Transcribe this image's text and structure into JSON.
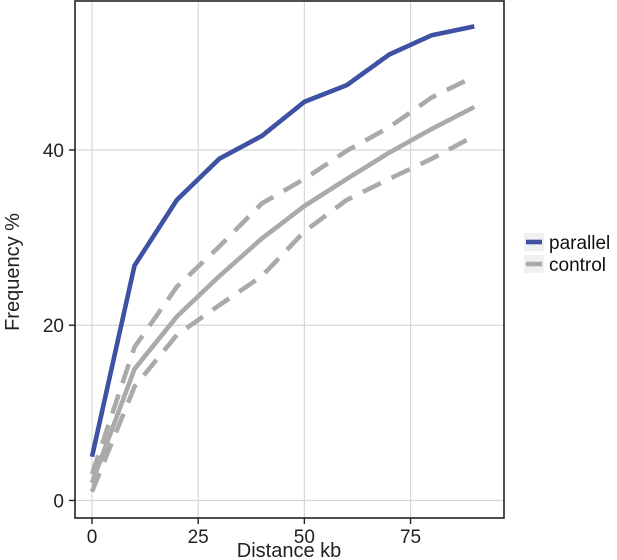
{
  "chart_data": {
    "type": "line",
    "title": "",
    "xlabel": "Distance kb",
    "ylabel": "Frequency %",
    "xlim": [
      -4,
      97
    ],
    "ylim": [
      -2,
      57
    ],
    "x_ticks": [
      0,
      25,
      50,
      75
    ],
    "x_tick_labels": [
      "0",
      "25",
      "50",
      "75"
    ],
    "y_ticks": [
      0,
      20,
      40
    ],
    "y_tick_labels": [
      "0",
      "20",
      "40"
    ],
    "grid": true,
    "legend_position": "right",
    "x": [
      0,
      10,
      20,
      30,
      40,
      50,
      60,
      70,
      80,
      90
    ],
    "series": [
      {
        "name": "parallel",
        "color": "#3f51a3",
        "style": "solid",
        "values": [
          5.0,
          26.8,
          34.3,
          39.0,
          41.6,
          45.5,
          47.4,
          50.9,
          53.1,
          54.1
        ]
      },
      {
        "name": "control",
        "color": "#aaaaaa",
        "style": "solid",
        "values": [
          2.0,
          15.0,
          21.0,
          25.6,
          29.9,
          33.6,
          36.7,
          39.7,
          42.4,
          44.9
        ]
      },
      {
        "name": "",
        "color": "#aaaaaa",
        "style": "dashed",
        "values": [
          3.0,
          17.5,
          24.4,
          29.0,
          33.9,
          36.7,
          39.9,
          42.6,
          46.0,
          48.4
        ]
      },
      {
        "name": "",
        "color": "#aaaaaa",
        "style": "dashed",
        "values": [
          1.0,
          13.0,
          18.9,
          22.3,
          25.6,
          30.7,
          34.3,
          36.7,
          39.0,
          41.6
        ]
      }
    ],
    "legend": [
      {
        "label": "parallel",
        "color": "#3f51a3"
      },
      {
        "label": "control",
        "color": "#aaaaaa"
      }
    ]
  }
}
